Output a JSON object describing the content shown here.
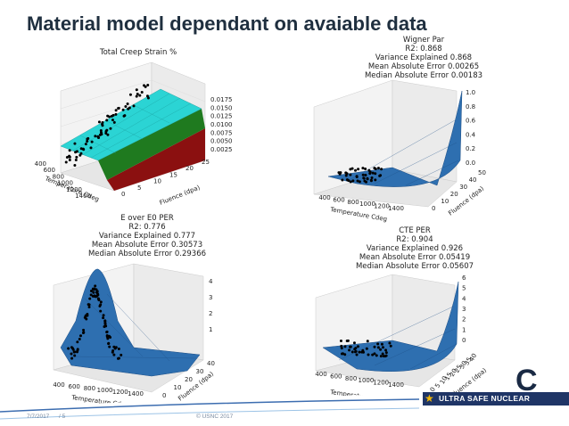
{
  "slide": {
    "title": "Material model dependant on avaiable data",
    "footer_date": "7/7/2017",
    "footer_page": "/ 5",
    "footer_copyright": "© USNC 2017",
    "logo_letter": "C",
    "logo_text": "ULTRA SAFE NUCLEAR"
  },
  "panels": {
    "creep": {
      "title_lines": [
        "Total Creep Strain %"
      ],
      "x_label": "Temperature Cdeg",
      "y_label": "Fluence (dpa)",
      "x_ticks": [
        "400",
        "600",
        "800",
        "1000",
        "1200",
        "1400"
      ],
      "y_ticks": [
        "0",
        "5",
        "10",
        "15",
        "20",
        "25"
      ],
      "z_ticks": [
        "0.0025",
        "0.0050",
        "0.0075",
        "0.0100",
        "0.0125",
        "0.0150",
        "0.0175"
      ]
    },
    "wigner": {
      "title_lines": [
        "Wigner Par",
        "R2: 0.868",
        "Variance Explained 0.868",
        "Mean Absolute Error 0.00265",
        "Median Absolute Error 0.00183"
      ],
      "x_label": "Temperature Cdeg",
      "y_label": "Fluence (dpa)",
      "x_ticks": [
        "400",
        "600",
        "800",
        "1000",
        "1200",
        "1400"
      ],
      "y_ticks": [
        "0",
        "10",
        "20",
        "30",
        "40",
        "50"
      ],
      "z_ticks": [
        "0.0",
        "0.2",
        "0.4",
        "0.6",
        "0.8",
        "1.0"
      ]
    },
    "e_over_e0": {
      "title_lines": [
        "E over E0 PER",
        "R2: 0.776",
        "Variance Explained 0.777",
        "Mean Absolute Error 0.30573",
        "Median Absolute Error 0.29366"
      ],
      "x_label": "Temperature Cdeg",
      "y_label": "Fluence (dpa)",
      "x_ticks": [
        "400",
        "600",
        "800",
        "1000",
        "1200",
        "1400"
      ],
      "y_ticks": [
        "0",
        "10",
        "20",
        "30",
        "40"
      ],
      "z_ticks": [
        "1",
        "2",
        "3",
        "4"
      ]
    },
    "cte": {
      "title_lines": [
        "CTE PER",
        "R2: 0.904",
        "Variance Explained 0.926",
        "Mean Absolute Error 0.05419",
        "Median Absolute Error 0.05607"
      ],
      "x_label": "Temperature Cdeg",
      "y_label": "Fluence (dpa)",
      "x_ticks": [
        "400",
        "600",
        "800",
        "1000",
        "1200",
        "1400"
      ],
      "y_ticks": [
        "0",
        "5",
        "10",
        "15",
        "20",
        "25",
        "30",
        "35",
        "40"
      ],
      "z_ticks": [
        "0",
        "1",
        "2",
        "3",
        "4",
        "5",
        "6"
      ]
    }
  },
  "colors": {
    "title": "#1f2f3f",
    "surface_blue": "#2e6fb0",
    "surface_cyan": "#2bd4d4",
    "surface_green": "#1f7a1f",
    "surface_red": "#8b1010",
    "points": "#000000",
    "logo_bar": "#1f3566"
  }
}
